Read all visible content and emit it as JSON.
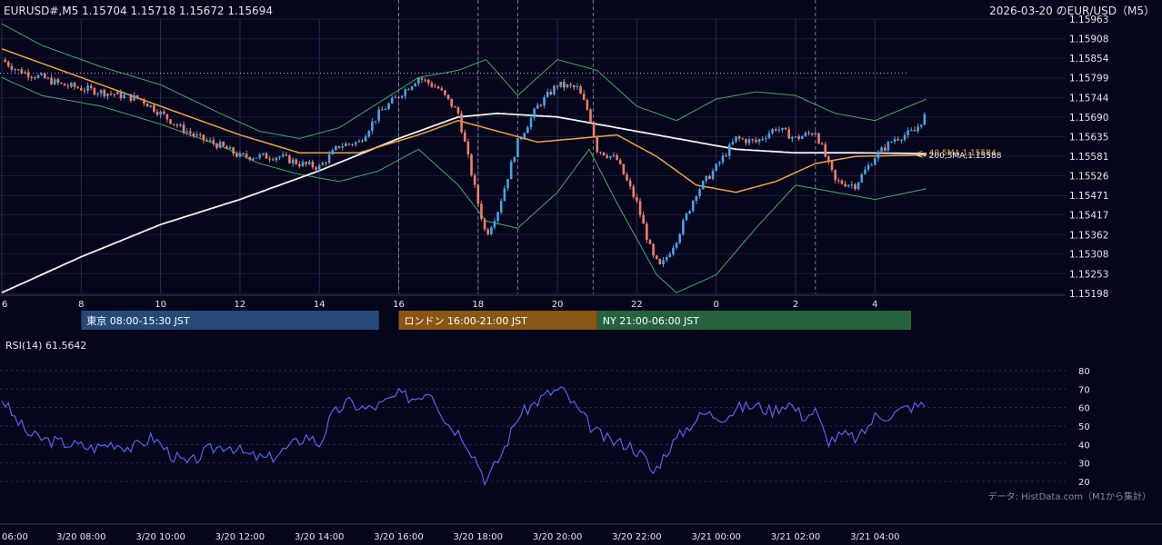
{
  "header": {
    "symbol_ohlc": "EURUSD#,M5 1.15704 1.15718 1.15672 1.15694",
    "title_right": "2026-03-20 のEUR/USD（M5）"
  },
  "ma_labels": {
    "ma40": "<- 40,5MA,1.15584",
    "ma200": "<- 200,5MA,1.15588"
  },
  "sessions": [
    {
      "label": "東京 08:00-15:30 JST",
      "start_hour": 8,
      "end_hour": 15.5,
      "color": "#254a78"
    },
    {
      "label": "ロンドン 16:00-21:00 JST",
      "start_hour": 16,
      "end_hour": 21,
      "color": "#8a5614"
    },
    {
      "label": "NY 21:00-06:00 JST",
      "start_hour": 21,
      "end_hour": 29.25,
      "color": "#25633e"
    }
  ],
  "rsi_label": "RSI(14) 61.5642",
  "source_note": "データ: HistData.com（M1から集計）",
  "colors": {
    "background": "#05051c",
    "candle_up": "#4aa3e0",
    "candle_down": "#e8806a",
    "bollinger": "#3fae63",
    "ma40": "#f0a53c",
    "ma200": "#f2f2f2",
    "rsi": "#5865e8",
    "grid": "#1b1b3a"
  },
  "chart_data": [
    {
      "type": "candlestick",
      "x_unit": "hour (JST, 3/20 00:00 = 0)",
      "xlim": [
        6,
        29.75
      ],
      "ylim": [
        1.15198,
        1.15963
      ],
      "y_ticks": [
        1.15963,
        1.15908,
        1.15854,
        1.15799,
        1.15744,
        1.1569,
        1.15635,
        1.15581,
        1.15526,
        1.15471,
        1.15417,
        1.15362,
        1.15308,
        1.15253,
        1.15198
      ],
      "x_ticks": [
        {
          "hour": 6,
          "label": "6"
        },
        {
          "hour": 8,
          "label": "8"
        },
        {
          "hour": 10,
          "label": "10"
        },
        {
          "hour": 12,
          "label": "12"
        },
        {
          "hour": 14,
          "label": "14"
        },
        {
          "hour": 16,
          "label": "16"
        },
        {
          "hour": 18,
          "label": "18"
        },
        {
          "hour": 20,
          "label": "20"
        },
        {
          "hour": 22,
          "label": "22"
        },
        {
          "hour": 24,
          "label": "0"
        },
        {
          "hour": 26,
          "label": "2"
        },
        {
          "hour": 28,
          "label": "4"
        }
      ],
      "reference_level": 1.15812,
      "session_lines": [
        16,
        18,
        19,
        20.9,
        26.5
      ],
      "close_anchors": [
        [
          6.0,
          1.1585
        ],
        [
          6.4,
          1.1582
        ],
        [
          7.0,
          1.158
        ],
        [
          7.5,
          1.1578
        ],
        [
          8.0,
          1.1577
        ],
        [
          8.5,
          1.1576
        ],
        [
          9.0,
          1.1575
        ],
        [
          9.5,
          1.1574
        ],
        [
          10.0,
          1.157
        ],
        [
          10.5,
          1.1566
        ],
        [
          11.0,
          1.1563
        ],
        [
          11.5,
          1.1561
        ],
        [
          12.0,
          1.1558
        ],
        [
          12.5,
          1.1558
        ],
        [
          13.0,
          1.1558
        ],
        [
          13.5,
          1.1556
        ],
        [
          14.0,
          1.1555
        ],
        [
          14.5,
          1.1561
        ],
        [
          15.0,
          1.1562
        ],
        [
          15.5,
          1.157
        ],
        [
          16.0,
          1.1575
        ],
        [
          16.5,
          1.158
        ],
        [
          17.0,
          1.1577
        ],
        [
          17.5,
          1.157
        ],
        [
          18.0,
          1.1545
        ],
        [
          18.2,
          1.1536
        ],
        [
          18.5,
          1.1543
        ],
        [
          19.0,
          1.1562
        ],
        [
          19.5,
          1.1572
        ],
        [
          20.0,
          1.1578
        ],
        [
          20.5,
          1.1577
        ],
        [
          20.8,
          1.157
        ],
        [
          21.0,
          1.156
        ],
        [
          21.5,
          1.1557
        ],
        [
          22.0,
          1.1545
        ],
        [
          22.4,
          1.153
        ],
        [
          22.6,
          1.1527
        ],
        [
          23.0,
          1.1535
        ],
        [
          23.5,
          1.1548
        ],
        [
          24.0,
          1.1555
        ],
        [
          24.5,
          1.1563
        ],
        [
          25.0,
          1.1562
        ],
        [
          25.5,
          1.1566
        ],
        [
          26.0,
          1.1563
        ],
        [
          26.5,
          1.1565
        ],
        [
          27.0,
          1.1551
        ],
        [
          27.5,
          1.155
        ],
        [
          28.0,
          1.1558
        ],
        [
          28.5,
          1.1563
        ],
        [
          29.0,
          1.1565
        ],
        [
          29.3,
          1.157
        ]
      ],
      "ma40_anchors": [
        [
          6,
          1.1588
        ],
        [
          8,
          1.158
        ],
        [
          10,
          1.1572
        ],
        [
          12,
          1.1564
        ],
        [
          13.5,
          1.1559
        ],
        [
          15,
          1.1559
        ],
        [
          16.5,
          1.1564
        ],
        [
          17.5,
          1.1568
        ],
        [
          18.5,
          1.1565
        ],
        [
          19.5,
          1.1562
        ],
        [
          20.5,
          1.1563
        ],
        [
          21.5,
          1.1564
        ],
        [
          22.5,
          1.1558
        ],
        [
          23.5,
          1.155
        ],
        [
          24.5,
          1.1548
        ],
        [
          25.5,
          1.1551
        ],
        [
          26.5,
          1.1556
        ],
        [
          27.5,
          1.1558
        ],
        [
          29.3,
          1.15584
        ]
      ],
      "ma200_anchors": [
        [
          6,
          1.152
        ],
        [
          8,
          1.153
        ],
        [
          10,
          1.1539
        ],
        [
          12,
          1.1546
        ],
        [
          14,
          1.1554
        ],
        [
          16,
          1.1563
        ],
        [
          17.5,
          1.1569
        ],
        [
          18.5,
          1.157
        ],
        [
          20,
          1.1569
        ],
        [
          21.5,
          1.1566
        ],
        [
          23,
          1.1563
        ],
        [
          24.5,
          1.156
        ],
        [
          26,
          1.1559
        ],
        [
          27.5,
          1.1559
        ],
        [
          29.3,
          1.15588
        ]
      ],
      "bb_upper_anchors": [
        [
          6,
          1.1595
        ],
        [
          7,
          1.1589
        ],
        [
          8.5,
          1.1583
        ],
        [
          10,
          1.1578
        ],
        [
          11.5,
          1.157
        ],
        [
          12.5,
          1.1565
        ],
        [
          13.5,
          1.1563
        ],
        [
          14.5,
          1.1566
        ],
        [
          15.5,
          1.1573
        ],
        [
          16.5,
          1.158
        ],
        [
          17.5,
          1.1582
        ],
        [
          18.2,
          1.1585
        ],
        [
          19,
          1.1575
        ],
        [
          20,
          1.1585
        ],
        [
          21,
          1.1582
        ],
        [
          22,
          1.1572
        ],
        [
          23,
          1.1568
        ],
        [
          24,
          1.1574
        ],
        [
          25,
          1.1576
        ],
        [
          26,
          1.1575
        ],
        [
          27,
          1.157
        ],
        [
          28,
          1.1568
        ],
        [
          29.3,
          1.1574
        ]
      ],
      "bb_lower_anchors": [
        [
          6,
          1.158
        ],
        [
          7,
          1.1575
        ],
        [
          8.5,
          1.1572
        ],
        [
          10,
          1.1567
        ],
        [
          11.5,
          1.1561
        ],
        [
          12.5,
          1.1556
        ],
        [
          13.5,
          1.1553
        ],
        [
          14.5,
          1.1551
        ],
        [
          15.5,
          1.1554
        ],
        [
          16.5,
          1.156
        ],
        [
          17.5,
          1.155
        ],
        [
          18.2,
          1.154
        ],
        [
          19,
          1.1538
        ],
        [
          20,
          1.1548
        ],
        [
          20.8,
          1.156
        ],
        [
          21.5,
          1.1545
        ],
        [
          22.5,
          1.1525
        ],
        [
          23,
          1.152
        ],
        [
          24,
          1.1525
        ],
        [
          25,
          1.1538
        ],
        [
          26,
          1.155
        ],
        [
          27,
          1.1548
        ],
        [
          28,
          1.1546
        ],
        [
          29.3,
          1.1549
        ]
      ]
    },
    {
      "type": "line",
      "name": "RSI(14)",
      "ylim": [
        15,
        85
      ],
      "y_ticks": [
        80,
        70,
        60,
        50,
        40,
        30,
        20
      ],
      "x_time_labels": [
        {
          "hour": 6,
          "label": "06:00"
        },
        {
          "hour": 8,
          "label": "3/20 08:00"
        },
        {
          "hour": 10,
          "label": "3/20 10:00"
        },
        {
          "hour": 12,
          "label": "3/20 12:00"
        },
        {
          "hour": 14,
          "label": "3/20 14:00"
        },
        {
          "hour": 16,
          "label": "3/20 16:00"
        },
        {
          "hour": 18,
          "label": "3/20 18:00"
        },
        {
          "hour": 20,
          "label": "3/20 20:00"
        },
        {
          "hour": 22,
          "label": "3/20 22:00"
        },
        {
          "hour": 24,
          "label": "3/21 00:00"
        },
        {
          "hour": 26,
          "label": "3/21 02:00"
        },
        {
          "hour": 28,
          "label": "3/21 04:00"
        }
      ],
      "anchors": [
        [
          6,
          65
        ],
        [
          6.3,
          55
        ],
        [
          6.7,
          45
        ],
        [
          7.2,
          42
        ],
        [
          7.8,
          40
        ],
        [
          8.3,
          38
        ],
        [
          8.8,
          41
        ],
        [
          9.3,
          38
        ],
        [
          9.8,
          44
        ],
        [
          10.3,
          34
        ],
        [
          10.7,
          29
        ],
        [
          11.2,
          37
        ],
        [
          11.7,
          40
        ],
        [
          12.2,
          34
        ],
        [
          12.7,
          32
        ],
        [
          13.2,
          38
        ],
        [
          13.7,
          45
        ],
        [
          14.0,
          40
        ],
        [
          14.3,
          55
        ],
        [
          14.7,
          63
        ],
        [
          15.2,
          59
        ],
        [
          15.6,
          62
        ],
        [
          16.0,
          67
        ],
        [
          16.4,
          65
        ],
        [
          16.8,
          70
        ],
        [
          17.2,
          52
        ],
        [
          17.6,
          45
        ],
        [
          18.0,
          30
        ],
        [
          18.2,
          20
        ],
        [
          18.6,
          35
        ],
        [
          19.0,
          55
        ],
        [
          19.4,
          62
        ],
        [
          19.8,
          68
        ],
        [
          20.1,
          70
        ],
        [
          20.5,
          59
        ],
        [
          20.9,
          48
        ],
        [
          21.3,
          42
        ],
        [
          21.8,
          40
        ],
        [
          22.2,
          33
        ],
        [
          22.4,
          24
        ],
        [
          22.8,
          38
        ],
        [
          23.3,
          50
        ],
        [
          23.7,
          57
        ],
        [
          24.2,
          55
        ],
        [
          24.6,
          60
        ],
        [
          25.0,
          61
        ],
        [
          25.4,
          58
        ],
        [
          25.8,
          63
        ],
        [
          26.2,
          55
        ],
        [
          26.5,
          58
        ],
        [
          26.8,
          42
        ],
        [
          27.2,
          45
        ],
        [
          27.6,
          43
        ],
        [
          28.0,
          55
        ],
        [
          28.4,
          56
        ],
        [
          28.8,
          60
        ],
        [
          29.3,
          61.5642
        ]
      ]
    }
  ]
}
